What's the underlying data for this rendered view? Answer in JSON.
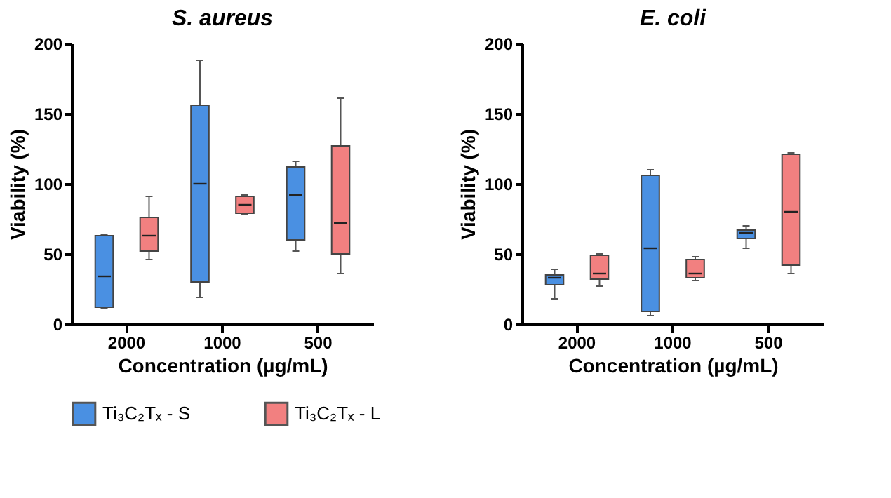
{
  "chart_data": [
    {
      "type": "box",
      "title": "S. aureus",
      "xlabel": "Concentration (µg/mL)",
      "ylabel": "Viability (%)",
      "categories": [
        "2000",
        "1000",
        "500"
      ],
      "ylim": [
        0,
        200
      ],
      "yticks": [
        0,
        50,
        100,
        150,
        200
      ],
      "grid": false,
      "legend": "bottom",
      "series": [
        {
          "name": "Ti₃C₂Tₓ - S",
          "color": "#4a90e2",
          "boxes": [
            {
              "low": 11,
              "q1": 12,
              "median": 34,
              "q3": 63,
              "high": 64
            },
            {
              "low": 19,
              "q1": 30,
              "median": 100,
              "q3": 156,
              "high": 188
            },
            {
              "low": 52,
              "q1": 60,
              "median": 92,
              "q3": 112,
              "high": 116
            }
          ]
        },
        {
          "name": "Ti₃C₂Tₓ - L",
          "color": "#f28080",
          "boxes": [
            {
              "low": 46,
              "q1": 52,
              "median": 63,
              "q3": 76,
              "high": 91
            },
            {
              "low": 78,
              "q1": 79,
              "median": 85,
              "q3": 91,
              "high": 92
            },
            {
              "low": 36,
              "q1": 50,
              "median": 72,
              "q3": 127,
              "high": 161
            }
          ]
        }
      ]
    },
    {
      "type": "box",
      "title": "E. coli",
      "xlabel": "Concentration (µg/mL)",
      "ylabel": "Viability (%)",
      "categories": [
        "2000",
        "1000",
        "500"
      ],
      "ylim": [
        0,
        200
      ],
      "yticks": [
        0,
        50,
        100,
        150,
        200
      ],
      "grid": false,
      "legend": "bottom",
      "series": [
        {
          "name": "Ti₃C₂Tₓ - S",
          "color": "#4a90e2",
          "boxes": [
            {
              "low": 18,
              "q1": 28,
              "median": 33,
              "q3": 35,
              "high": 39
            },
            {
              "low": 6,
              "q1": 9,
              "median": 54,
              "q3": 106,
              "high": 110
            },
            {
              "low": 54,
              "q1": 61,
              "median": 65,
              "q3": 67,
              "high": 70
            }
          ]
        },
        {
          "name": "Ti₃C₂Tₓ - L",
          "color": "#f28080",
          "boxes": [
            {
              "low": 27,
              "q1": 32,
              "median": 36,
              "q3": 49,
              "high": 50
            },
            {
              "low": 31,
              "q1": 33,
              "median": 36,
              "q3": 46,
              "high": 48
            },
            {
              "low": 36,
              "q1": 42,
              "median": 80,
              "q3": 121,
              "high": 122
            }
          ]
        }
      ]
    }
  ]
}
